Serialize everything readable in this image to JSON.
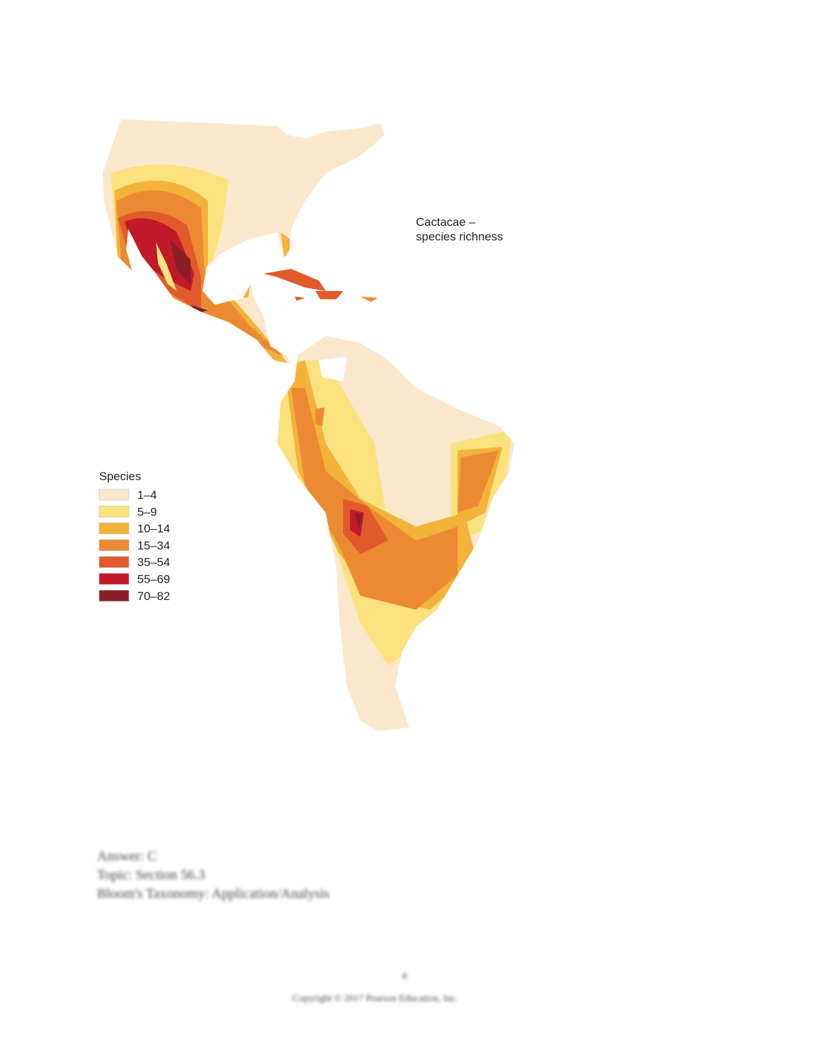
{
  "map": {
    "title": [
      "Cactacae –",
      "species richness"
    ],
    "legend": {
      "title": "Species",
      "items": [
        {
          "label": "1–4",
          "color": "#fbe8cc"
        },
        {
          "label": "5–9",
          "color": "#fbe27f"
        },
        {
          "label": "10–14",
          "color": "#f3b33a"
        },
        {
          "label": "15–34",
          "color": "#ec8a33"
        },
        {
          "label": "35–54",
          "color": "#e05a2b"
        },
        {
          "label": "55–69",
          "color": "#c0192a"
        },
        {
          "label": "70–82",
          "color": "#8a1f28"
        }
      ]
    }
  },
  "footer": {
    "lines": [
      "Answer: C",
      "Topic: Section 56.3",
      "Bloom's Taxonomy: Application/Analysis"
    ],
    "page": "8",
    "copyright": "Copyright © 2017 Pearson Education, Inc."
  }
}
